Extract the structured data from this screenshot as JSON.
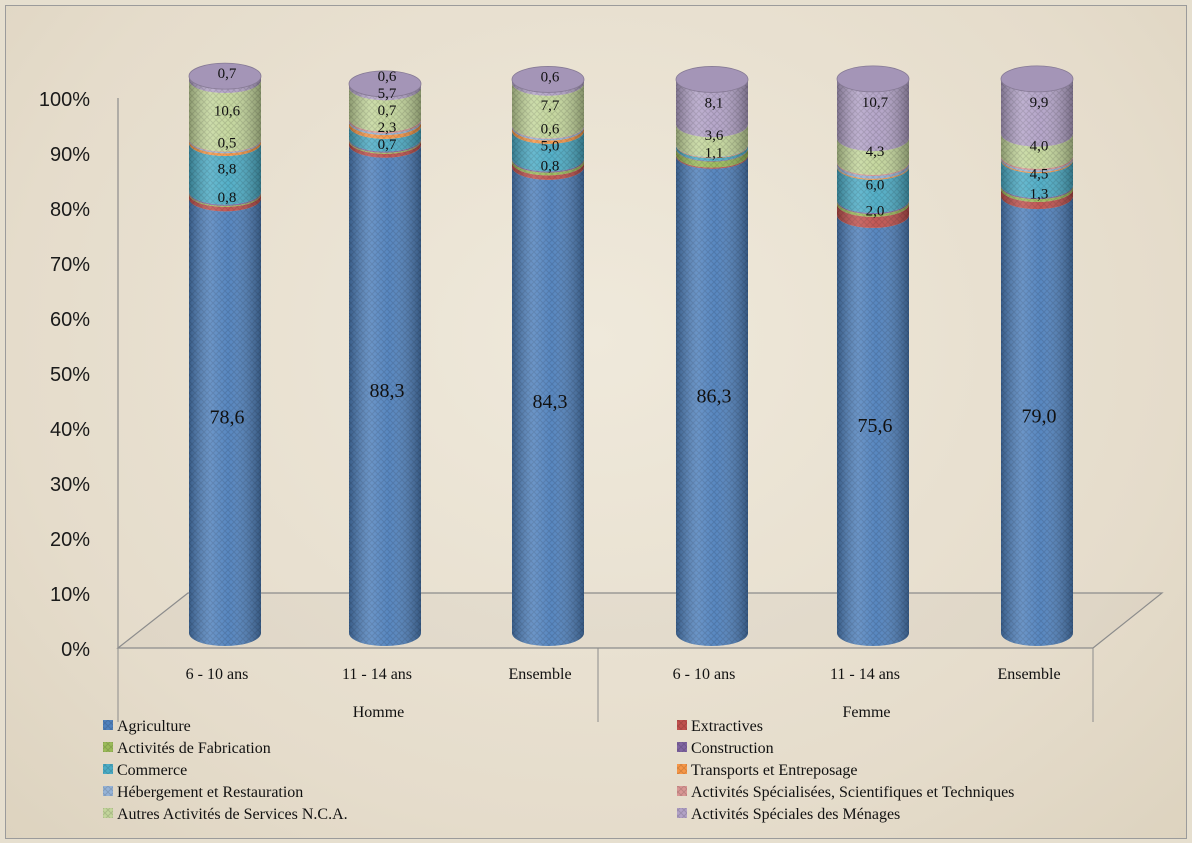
{
  "chart_data": {
    "type": "bar",
    "style": "3d-stacked-cylinder-100-percent",
    "title": "",
    "xlabel": "",
    "ylabel": "",
    "ylim": [
      0,
      100
    ],
    "yticks": [
      "0%",
      "10%",
      "20%",
      "30%",
      "40%",
      "50%",
      "60%",
      "70%",
      "80%",
      "90%",
      "100%"
    ],
    "grid": false,
    "legend_position": "bottom",
    "categories": [
      "6 - 10 ans",
      "11 - 14 ans",
      "Ensemble",
      "6 - 10 ans",
      "11 - 14 ans",
      "Ensemble"
    ],
    "groups": [
      {
        "name": "Homme",
        "categories": [
          0,
          1,
          2
        ]
      },
      {
        "name": "Femme",
        "categories": [
          3,
          4,
          5
        ]
      }
    ],
    "series": [
      {
        "name": "Agriculture",
        "color": "#4f81bd",
        "values": [
          78.6,
          88.3,
          84.3,
          86.3,
          75.6,
          79.0
        ],
        "labels": [
          "78,6",
          "88,3",
          "84,3",
          "86,3",
          "75,6",
          "79,0"
        ]
      },
      {
        "name": "Extractives",
        "color": "#c0504d",
        "values": [
          0.8,
          0.7,
          0.8,
          0.2,
          2.0,
          1.3
        ],
        "labels": [
          "0,8",
          "0,7",
          "0,8",
          "",
          "2,0",
          "1,3"
        ]
      },
      {
        "name": "Activités de Fabrication",
        "color": "#9bbb59",
        "values": [
          0.2,
          0.2,
          0.5,
          1.1,
          0.5,
          0.5
        ],
        "labels": [
          "",
          "",
          "",
          "1,1",
          "",
          ""
        ]
      },
      {
        "name": "Construction",
        "color": "#8064a2",
        "values": [
          0.2,
          0.2,
          0.2,
          0.1,
          0.2,
          0.2
        ],
        "labels": [
          "",
          "",
          "",
          "",
          "",
          ""
        ]
      },
      {
        "name": "Commerce",
        "color": "#4bacc6",
        "values": [
          8.8,
          2.3,
          5.0,
          0.5,
          6.0,
          4.5
        ],
        "labels": [
          "8,8",
          "2,3",
          "5,0",
          "",
          "6,0",
          "4,5"
        ]
      },
      {
        "name": "Transports et Entreposage",
        "color": "#f79646",
        "values": [
          0.5,
          0.7,
          0.6,
          0.1,
          0.2,
          0.2
        ],
        "labels": [
          "0,5",
          "0,7",
          "0,6",
          "",
          "",
          ""
        ]
      },
      {
        "name": "Hébergement et Restauration",
        "color": "#95b3d7",
        "values": [
          0.2,
          0.3,
          0.3,
          0.1,
          0.5,
          0.3
        ],
        "labels": [
          "",
          "",
          "",
          "",
          "",
          ""
        ]
      },
      {
        "name": "Activités Spécialisées, Scientifiques et Techniques",
        "color": "#d99694",
        "values": [
          0.1,
          0.3,
          0.1,
          0.0,
          0.2,
          0.3
        ],
        "labels": [
          "",
          "",
          "",
          "",
          "",
          ""
        ]
      },
      {
        "name": "Autres Activités de Services N.C.A.",
        "color": "#c3d69b",
        "values": [
          10.6,
          5.7,
          7.7,
          3.6,
          4.3,
          4.0
        ],
        "labels": [
          "10,6",
          "5,7",
          "7,7",
          "3,6",
          "4,3",
          "4,0"
        ]
      },
      {
        "name": "Activités Spéciales des Ménages",
        "color": "#b2a2c7",
        "values": [
          0.7,
          0.6,
          0.6,
          8.1,
          10.7,
          9.9
        ],
        "labels": [
          "0,7",
          "0,6",
          "0,6",
          "8,1",
          "10,7",
          "9,9"
        ]
      }
    ],
    "legend_columns": 2
  }
}
